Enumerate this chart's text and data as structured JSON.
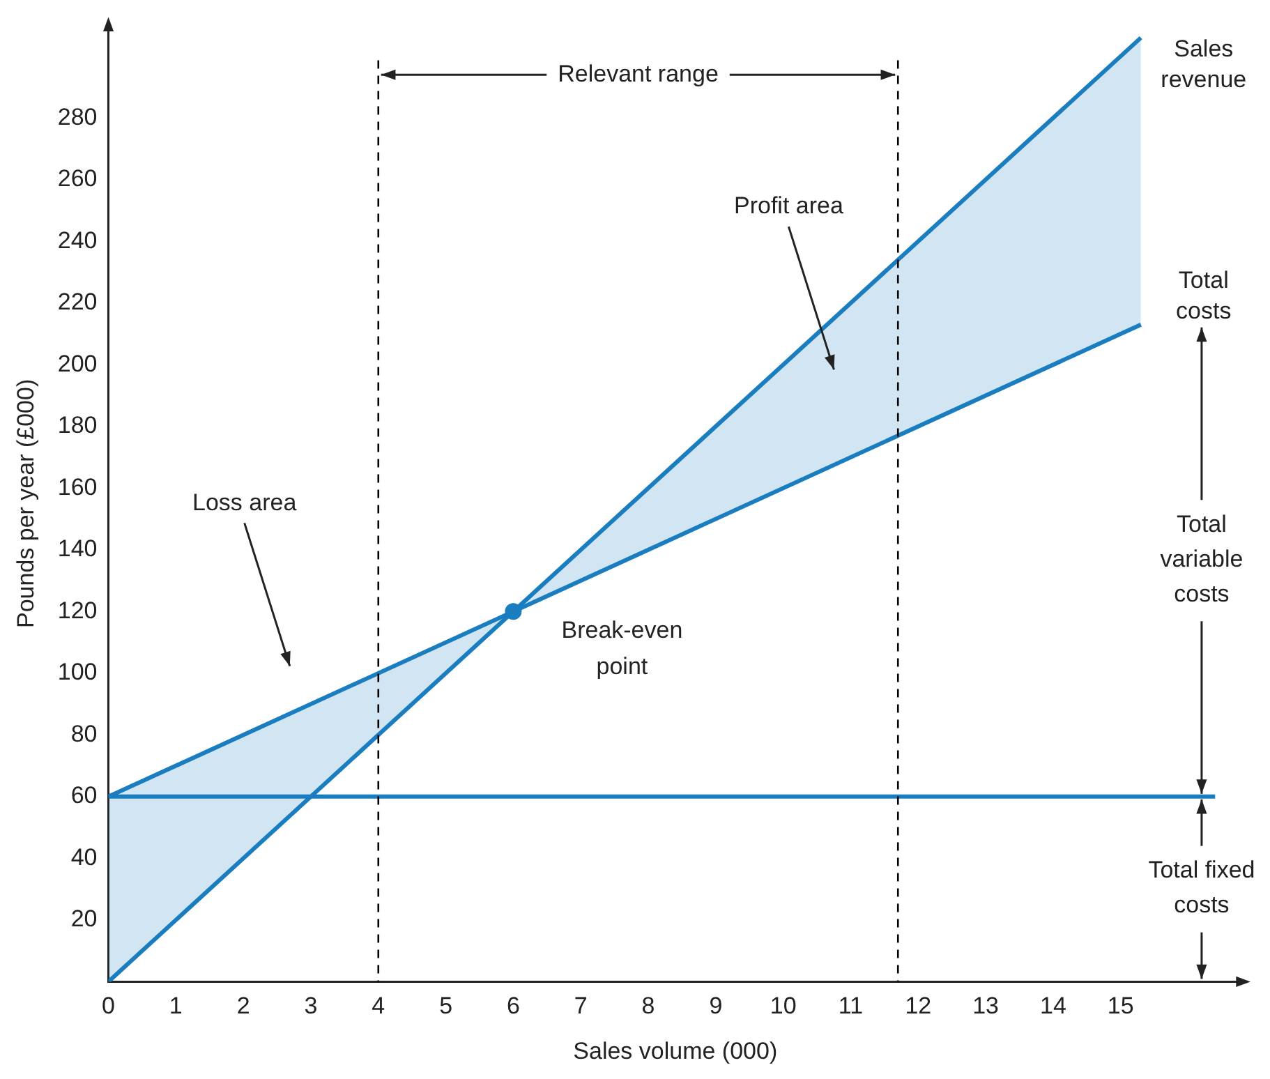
{
  "chart_data": {
    "type": "line",
    "xlabel": "Sales volume (000)",
    "ylabel": "Pounds per year (£000)",
    "xlim": [
      0,
      16.8
    ],
    "ylim": [
      0,
      310
    ],
    "xticks": [
      0,
      1,
      2,
      3,
      4,
      5,
      6,
      7,
      8,
      9,
      10,
      11,
      12,
      13,
      14,
      15
    ],
    "yticks": [
      20,
      40,
      60,
      80,
      100,
      120,
      140,
      160,
      180,
      200,
      220,
      240,
      260,
      280
    ],
    "series": [
      {
        "name": "Sales revenue",
        "color": "#1a7dc0",
        "x": [
          0,
          6,
          15.3
        ],
        "values": [
          0,
          120,
          306
        ],
        "lower": [
          0,
          120,
          213
        ],
        "upper": [
          60,
          120,
          306
        ]
      },
      {
        "name": "Total costs",
        "color": "#1a7dc0",
        "x": [
          0,
          15.3
        ],
        "values": [
          60,
          213
        ]
      },
      {
        "color": "#1a7dc0",
        "x": [
          0,
          16.4
        ],
        "values": [
          60,
          60
        ]
      }
    ],
    "ref_lines": [
      {
        "axis": "x",
        "value": 4,
        "line_style": "dashed",
        "color": "#000000"
      },
      {
        "axis": "x",
        "value": 11.7,
        "line_style": "dashed",
        "color": "#000000"
      }
    ],
    "annotations": [
      {
        "text": "Relevant range",
        "x": 4,
        "y": 294
      },
      "Profit area",
      "Loss area",
      {
        "text": "Break-even point",
        "x": 6,
        "y": 120
      },
      {
        "text": "Total variable costs",
        "x": 16.2,
        "y": 60
      },
      {
        "text": "Total fixed costs",
        "x": 16.2,
        "y": 60
      }
    ],
    "grid": false,
    "legend": false,
    "marker": "none",
    "line_style": "solid"
  }
}
